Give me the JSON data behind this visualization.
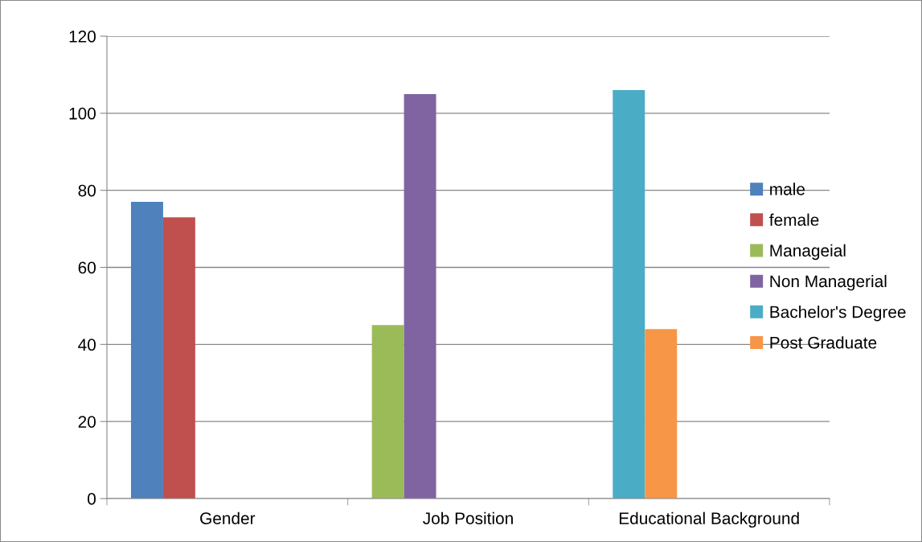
{
  "chart_data": {
    "type": "bar",
    "categories": [
      "Gender",
      "Job Position",
      "Educational Background"
    ],
    "series": [
      {
        "name": "male",
        "color": "#4f81bd",
        "values": [
          77,
          null,
          null
        ]
      },
      {
        "name": "female",
        "color": "#c0504d",
        "values": [
          73,
          null,
          null
        ]
      },
      {
        "name": "Manageial",
        "color": "#9bbb59",
        "values": [
          null,
          45,
          null
        ]
      },
      {
        "name": "Non Managerial",
        "color": "#8064a2",
        "values": [
          null,
          105,
          null
        ]
      },
      {
        "name": "Bachelor's Degree",
        "color": "#4bacc6",
        "values": [
          null,
          null,
          106
        ]
      },
      {
        "name": "Post Graduate",
        "color": "#f79646",
        "values": [
          null,
          null,
          44
        ]
      }
    ],
    "ylim": [
      0,
      120
    ],
    "yticks": [
      0,
      20,
      40,
      60,
      80,
      100,
      120
    ],
    "grid": "y",
    "legend": "right"
  }
}
